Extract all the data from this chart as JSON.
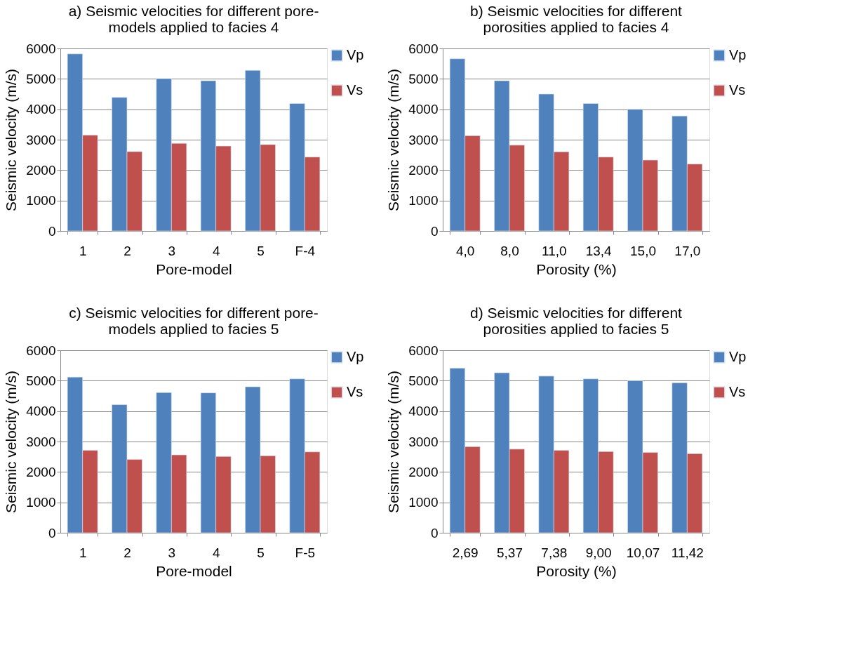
{
  "chart_data": [
    {
      "type": "bar",
      "title": "a) Seismic velocities for different pore-models applied to facies 4",
      "xlabel": "Pore-model",
      "ylabel": "Seismic velocity (m/s)",
      "categories": [
        "1",
        "2",
        "3",
        "4",
        "5",
        "F-4"
      ],
      "series": [
        {
          "name": "Vp",
          "color": "#4f81bd",
          "values": [
            5820,
            4390,
            5010,
            4940,
            5280,
            4190
          ]
        },
        {
          "name": "Vs",
          "color": "#c0504d",
          "values": [
            3150,
            2610,
            2880,
            2790,
            2840,
            2430
          ]
        }
      ],
      "ylim": [
        0,
        6000
      ],
      "yticks": [
        0,
        1000,
        2000,
        3000,
        4000,
        5000,
        6000
      ],
      "grid": "y",
      "legend": "right"
    },
    {
      "type": "bar",
      "title": "b) Seismic velocities for different porosities applied to facies 4",
      "xlabel": "Porosity (%)",
      "ylabel": "Seismic velocity (m/s)",
      "categories": [
        "4,0",
        "8,0",
        "11,0",
        "13,4",
        "15,0",
        "17,0"
      ],
      "series": [
        {
          "name": "Vp",
          "color": "#4f81bd",
          "values": [
            5660,
            4940,
            4500,
            4190,
            4000,
            3780
          ]
        },
        {
          "name": "Vs",
          "color": "#c0504d",
          "values": [
            3130,
            2820,
            2600,
            2430,
            2330,
            2200
          ]
        }
      ],
      "ylim": [
        0,
        6000
      ],
      "yticks": [
        0,
        1000,
        2000,
        3000,
        4000,
        5000,
        6000
      ],
      "grid": "y",
      "legend": "right"
    },
    {
      "type": "bar",
      "title": "c) Seismic velocities for different pore-models applied to facies 5",
      "xlabel": "Pore-model",
      "ylabel": "Seismic velocity (m/s)",
      "categories": [
        "1",
        "2",
        "3",
        "4",
        "5",
        "F-5"
      ],
      "series": [
        {
          "name": "Vp",
          "color": "#4f81bd",
          "values": [
            5120,
            4210,
            4610,
            4600,
            4800,
            5060
          ]
        },
        {
          "name": "Vs",
          "color": "#c0504d",
          "values": [
            2710,
            2410,
            2560,
            2510,
            2530,
            2660
          ]
        }
      ],
      "ylim": [
        0,
        6000
      ],
      "yticks": [
        0,
        1000,
        2000,
        3000,
        4000,
        5000,
        6000
      ],
      "grid": "y",
      "legend": "right"
    },
    {
      "type": "bar",
      "title": "d) Seismic velocities for different porosities applied to facies 5",
      "xlabel": "Porosity (%)",
      "ylabel": "Seismic velocity (m/s)",
      "categories": [
        "2,69",
        "5,37",
        "7,38",
        "9,00",
        "10,07",
        "11,42"
      ],
      "series": [
        {
          "name": "Vp",
          "color": "#4f81bd",
          "values": [
            5410,
            5260,
            5150,
            5060,
            5000,
            4930
          ]
        },
        {
          "name": "Vs",
          "color": "#c0504d",
          "values": [
            2830,
            2750,
            2710,
            2670,
            2640,
            2600
          ]
        }
      ],
      "ylim": [
        0,
        6000
      ],
      "yticks": [
        0,
        1000,
        2000,
        3000,
        4000,
        5000,
        6000
      ],
      "grid": "y",
      "legend": "right"
    }
  ]
}
